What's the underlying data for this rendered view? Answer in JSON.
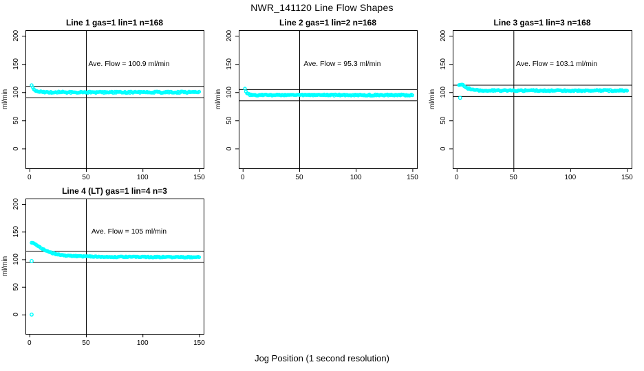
{
  "page": {
    "title": "NWR_141120  Line Flow Shapes",
    "xlabel": "Jog Position (1 second resolution)"
  },
  "colors": {
    "points": "#00ffff",
    "lines": "#000000",
    "background": "#ffffff"
  },
  "chart_data": [
    {
      "type": "scatter",
      "title": "Line 1 gas=1 lin=1 n=168",
      "annotation": "Ave. Flow =  100.9  ml/min",
      "ave_flow": 100.9,
      "n": 168,
      "ylabel": "ml/min",
      "x_ticks": [
        0,
        50,
        100,
        150
      ],
      "y_ticks": [
        0,
        50,
        100,
        150,
        200
      ],
      "xlim": [
        -3.5,
        154
      ],
      "ylim": [
        -35,
        210
      ],
      "vline_x": 50,
      "hlines": [
        110.9,
        90.9
      ],
      "settle_value": 100,
      "profile": [
        [
          2,
          112
        ],
        [
          2.7,
          108.5
        ],
        [
          3.5,
          106
        ],
        [
          4.5,
          104
        ],
        [
          6,
          102.5
        ],
        [
          8,
          101.3
        ],
        [
          10,
          100.7
        ],
        [
          14,
          100.2
        ],
        [
          20,
          100
        ],
        [
          40,
          100
        ],
        [
          80,
          100.1
        ],
        [
          150,
          100
        ]
      ],
      "noise": 1.3,
      "outliers": []
    },
    {
      "type": "scatter",
      "title": "Line 2 gas=1 lin=2 n=168",
      "annotation": "Ave. Flow =  95.3  ml/min",
      "ave_flow": 95.3,
      "n": 168,
      "ylabel": "ml/min",
      "x_ticks": [
        0,
        50,
        100,
        150
      ],
      "y_ticks": [
        0,
        50,
        100,
        150,
        200
      ],
      "xlim": [
        -3.5,
        154
      ],
      "ylim": [
        -35,
        210
      ],
      "vline_x": 50,
      "hlines": [
        105.3,
        85.3
      ],
      "settle_value": 95,
      "profile": [
        [
          2,
          105.5
        ],
        [
          3,
          99.5
        ],
        [
          4,
          97.3
        ],
        [
          5.5,
          96.2
        ],
        [
          7,
          95.6
        ],
        [
          9,
          95.2
        ],
        [
          12,
          95
        ],
        [
          20,
          94.9
        ],
        [
          50,
          94.9
        ],
        [
          100,
          95
        ],
        [
          150,
          95
        ]
      ],
      "noise": 1.1,
      "outliers": []
    },
    {
      "type": "scatter",
      "title": "Line 3 gas=1 lin=3 n=168",
      "annotation": "Ave. Flow =  103.1  ml/min",
      "ave_flow": 103.1,
      "n": 168,
      "ylabel": "ml/min",
      "x_ticks": [
        0,
        50,
        100,
        150
      ],
      "y_ticks": [
        0,
        50,
        100,
        150,
        200
      ],
      "xlim": [
        -3.5,
        154
      ],
      "ylim": [
        -35,
        210
      ],
      "vline_x": 50,
      "hlines": [
        113.1,
        93.1
      ],
      "settle_value": 103,
      "profile": [
        [
          2,
          112.5
        ],
        [
          3,
          113.2
        ],
        [
          4,
          113.4
        ],
        [
          5,
          112.8
        ],
        [
          6.5,
          111.2
        ],
        [
          8,
          109.3
        ],
        [
          10,
          107
        ],
        [
          12,
          105.6
        ],
        [
          15,
          104.4
        ],
        [
          18,
          103.7
        ],
        [
          22,
          103.3
        ],
        [
          30,
          103
        ],
        [
          50,
          103
        ],
        [
          150,
          103
        ]
      ],
      "noise": 1.1,
      "outliers": [
        [
          3,
          90
        ]
      ]
    },
    {
      "type": "scatter",
      "title": "Line 4 (LT) gas=1 lin=4 n=3",
      "annotation": "Ave. Flow =  105  ml/min",
      "ave_flow": 105,
      "n": 3,
      "ylabel": "ml/min",
      "x_ticks": [
        0,
        50,
        100,
        150
      ],
      "y_ticks": [
        0,
        50,
        100,
        150,
        200
      ],
      "xlim": [
        -3.5,
        154
      ],
      "ylim": [
        -35,
        210
      ],
      "vline_x": 50,
      "hlines": [
        115,
        95
      ],
      "settle_value": 104,
      "profile": [
        [
          2,
          129.5
        ],
        [
          3.5,
          128.8
        ],
        [
          5,
          127.5
        ],
        [
          6.5,
          126
        ],
        [
          8,
          124
        ],
        [
          10,
          121
        ],
        [
          12,
          118.6
        ],
        [
          14,
          116.5
        ],
        [
          17,
          113.8
        ],
        [
          20,
          111.5
        ],
        [
          24,
          109.3
        ],
        [
          28,
          108
        ],
        [
          33,
          106.8
        ],
        [
          40,
          105.8
        ],
        [
          50,
          105.2
        ],
        [
          60,
          104.8
        ],
        [
          75,
          104.4
        ],
        [
          100,
          104.2
        ],
        [
          125,
          104.1
        ],
        [
          150,
          104
        ]
      ],
      "noise": 0.9,
      "outliers": [
        [
          2,
          97
        ],
        [
          2,
          0
        ]
      ]
    }
  ]
}
